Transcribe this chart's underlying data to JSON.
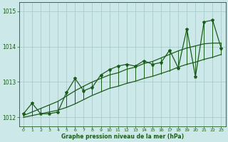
{
  "hours": [
    0,
    1,
    2,
    3,
    4,
    5,
    6,
    7,
    8,
    9,
    10,
    11,
    12,
    13,
    14,
    15,
    16,
    17,
    18,
    19,
    20,
    21,
    22,
    23
  ],
  "main_values": [
    1012.1,
    1012.4,
    1012.1,
    1012.1,
    1012.15,
    1012.7,
    1013.1,
    1012.75,
    1012.85,
    1013.2,
    1013.35,
    1013.45,
    1013.5,
    1013.45,
    1013.6,
    1013.5,
    1013.55,
    1013.9,
    1013.4,
    1014.5,
    1013.15,
    1014.7,
    1014.75,
    1013.95
  ],
  "trend_low": [
    1012.0,
    1012.05,
    1012.1,
    1012.15,
    1012.2,
    1012.28,
    1012.38,
    1012.5,
    1012.62,
    1012.72,
    1012.82,
    1012.88,
    1012.96,
    1013.02,
    1013.1,
    1013.16,
    1013.24,
    1013.32,
    1013.42,
    1013.5,
    1013.56,
    1013.64,
    1013.7,
    1013.78
  ],
  "trend_high": [
    1012.05,
    1012.15,
    1012.25,
    1012.35,
    1012.45,
    1012.6,
    1012.75,
    1012.88,
    1013.0,
    1013.1,
    1013.2,
    1013.26,
    1013.36,
    1013.42,
    1013.52,
    1013.58,
    1013.68,
    1013.78,
    1013.88,
    1013.96,
    1014.02,
    1014.08,
    1014.1,
    1014.1
  ],
  "bg_color": "#cce8e8",
  "line_color": "#1a5c1a",
  "grid_color": "#aacccc",
  "text_color": "#1a5c1a",
  "title": "Graphe pression niveau de la mer (hPa)",
  "ylim": [
    1011.75,
    1015.25
  ],
  "yticks": [
    1012,
    1013,
    1014,
    1015
  ],
  "xticks": [
    0,
    1,
    2,
    3,
    4,
    5,
    6,
    7,
    8,
    9,
    10,
    11,
    12,
    13,
    14,
    15,
    16,
    17,
    18,
    19,
    20,
    21,
    22,
    23
  ]
}
